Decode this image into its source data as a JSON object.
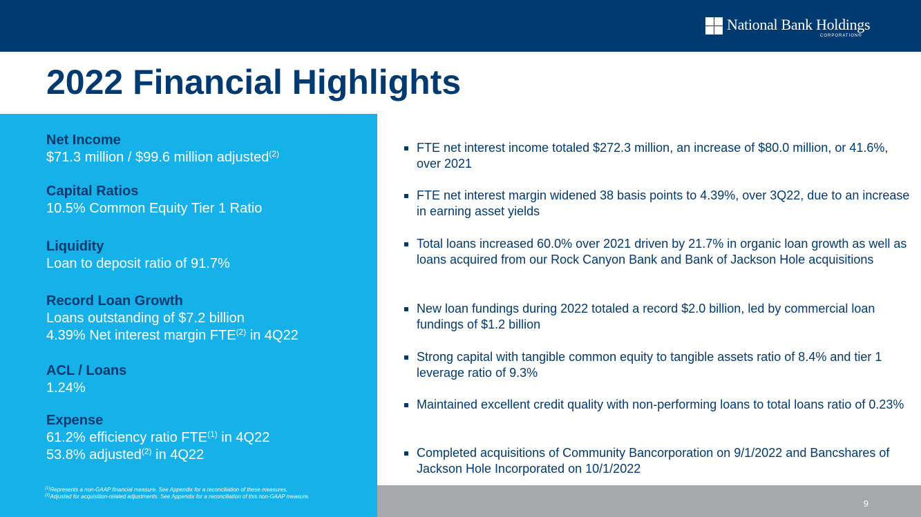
{
  "header": {
    "logo_name": "National Bank Holdings",
    "logo_sub": "CORPORATION",
    "logo_registered": "®"
  },
  "title": "2022 Financial Highlights",
  "metrics": [
    {
      "heading": "Net Income",
      "lines": [
        {
          "text": "$71.3 million / $99.6 million adjusted",
          "sup": "(2)"
        }
      ]
    },
    {
      "heading": "Capital Ratios",
      "lines": [
        {
          "text": "10.5% Common Equity Tier 1 Ratio"
        }
      ]
    },
    {
      "heading": "Liquidity",
      "lines": [
        {
          "text": "Loan to deposit ratio of 91.7%"
        }
      ]
    },
    {
      "heading": "Record Loan Growth",
      "lines": [
        {
          "text": "Loans outstanding of $7.2 billion"
        },
        {
          "text": "4.39% Net interest margin FTE",
          "sup": "(2)",
          "after": " in 4Q22"
        }
      ]
    },
    {
      "heading": "ACL / Loans",
      "lines": [
        {
          "text": "1.24%"
        }
      ]
    },
    {
      "heading": "Expense",
      "lines": [
        {
          "text": "61.2% efficiency ratio FTE",
          "sup": "(1)",
          "after": " in 4Q22"
        },
        {
          "text": "53.8% adjusted",
          "sup": "(2)",
          "after": " in 4Q22"
        }
      ]
    }
  ],
  "footnotes": [
    {
      "marker": "(1)",
      "text": "Represents a non-GAAP financial measure. See Appendix for a reconciliation of these measures."
    },
    {
      "marker": "(2)",
      "text": "Adjusted for acquisition-related adjustments. See Appendix for a reconciliation of this non-GAAP measure."
    }
  ],
  "bullets": [
    "FTE net interest income totaled $272.3 million, an increase of $80.0 million, or 41.6%, over 2021",
    "FTE net interest margin widened 38 basis points to 4.39%, over 3Q22, due to an increase in earning asset yields",
    "Total loans increased 60.0% over 2021 driven by 21.7% in organic loan growth as well as loans acquired from our Rock Canyon Bank and Bank of Jackson Hole acquisitions",
    "New loan fundings during 2022 totaled a record $2.0 billion, led by commercial loan fundings of $1.2 billion",
    "Strong capital with tangible common equity to tangible assets ratio of 8.4% and tier 1 leverage ratio of 9.3%",
    "Maintained excellent credit quality with non-performing loans to total loans ratio of 0.23%",
    "Completed acquisitions of Community Bancorporation on 9/1/2022 and Bancshares of Jackson Hole Incorporated on 10/1/2022"
  ],
  "page_number": "9",
  "colors": {
    "navy": "#003a70",
    "cyan": "#16b1e8",
    "grey": "#a7a8ab",
    "white": "#ffffff"
  }
}
